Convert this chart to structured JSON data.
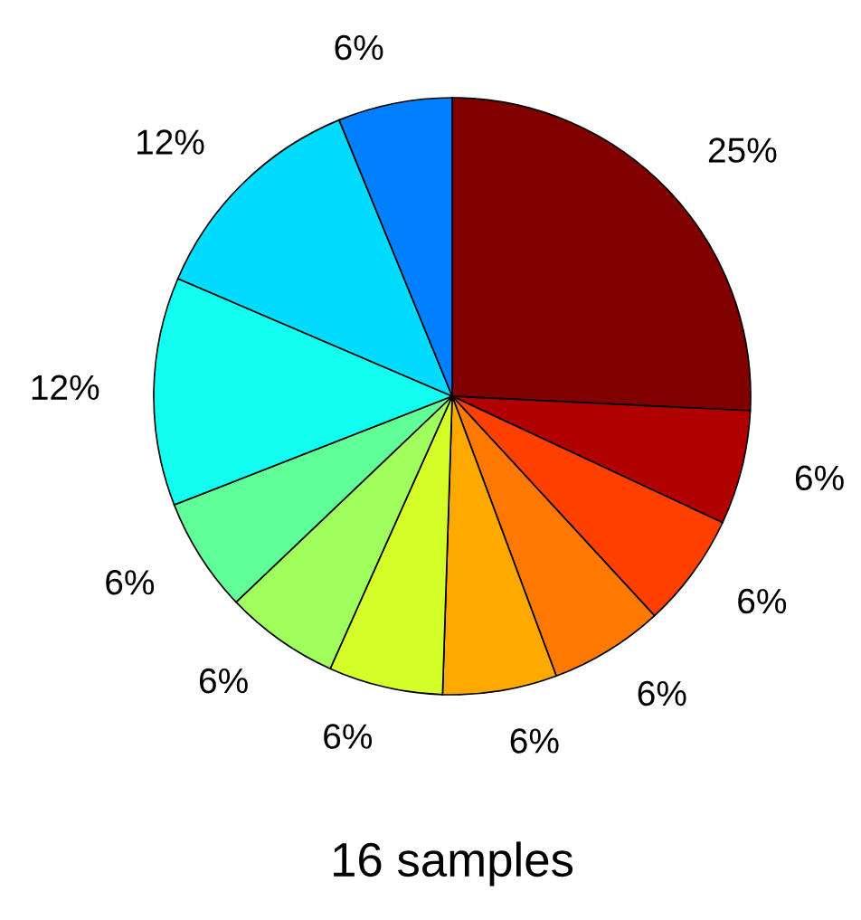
{
  "chart_data": {
    "type": "pie",
    "title": "16 samples",
    "categories": [
      null,
      null,
      null,
      null,
      null,
      null,
      null,
      null,
      null,
      null,
      null
    ],
    "values": [
      25,
      6,
      6,
      6,
      6,
      6,
      6,
      6,
      12,
      12,
      6
    ],
    "value_labels": [
      "25%",
      "6%",
      "6%",
      "6%",
      "6%",
      "6%",
      "6%",
      "6%",
      "12%",
      "12%",
      "6%"
    ],
    "colors": [
      "#800000",
      "#b00000",
      "#ff4000",
      "#ff7800",
      "#ffa800",
      "#d4ff28",
      "#a0ff5c",
      "#60ff98",
      "#10fff0",
      "#00dcff",
      "#0080ff"
    ]
  }
}
